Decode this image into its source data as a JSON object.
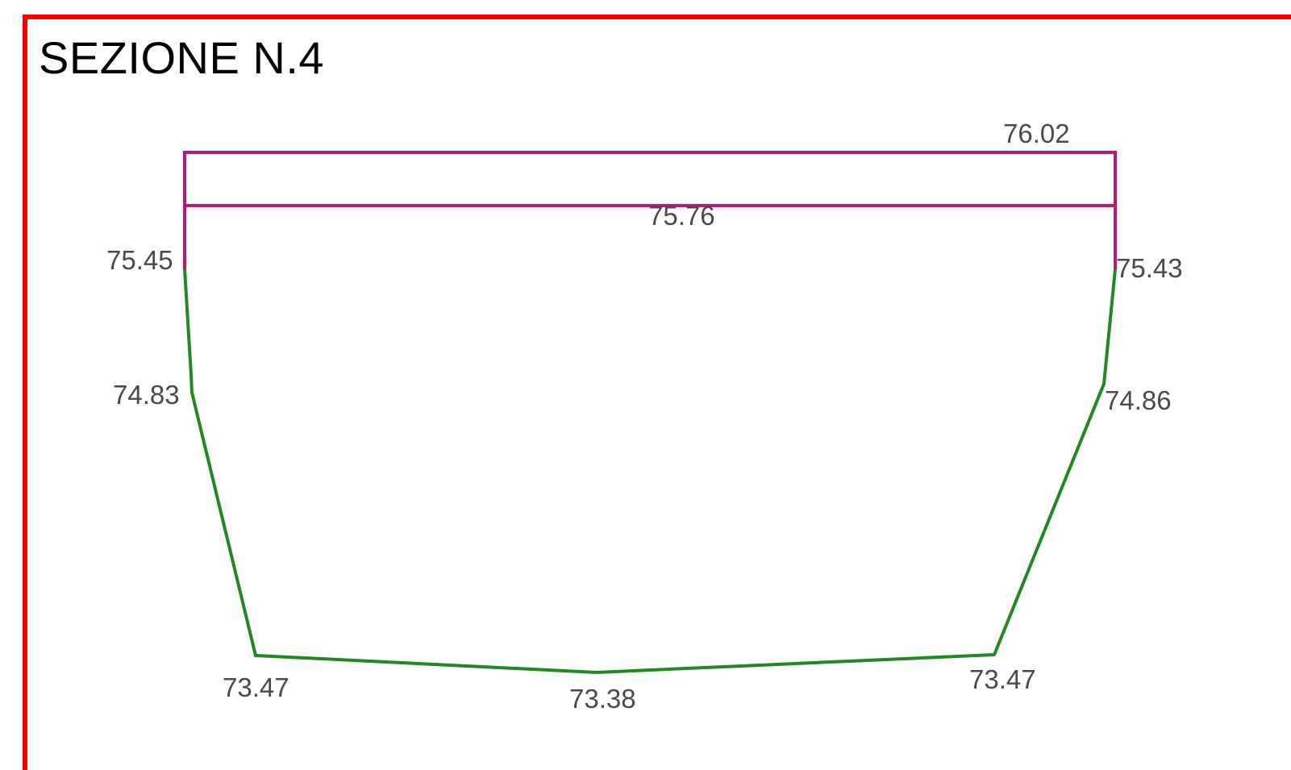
{
  "title": "SEZIONE N.4",
  "colors": {
    "frame": "#ff0000",
    "water": "#c0157a",
    "terrain": "#1f8a1f",
    "label": "#4a4a4a"
  },
  "elevations": {
    "top_water": "76.02",
    "water_level": "75.76",
    "left_bank_top": "75.45",
    "right_bank_top": "75.43",
    "left_bank_mid": "74.83",
    "right_bank_mid": "74.86",
    "left_toe": "73.47",
    "thalweg": "73.38",
    "right_toe": "73.47"
  }
}
